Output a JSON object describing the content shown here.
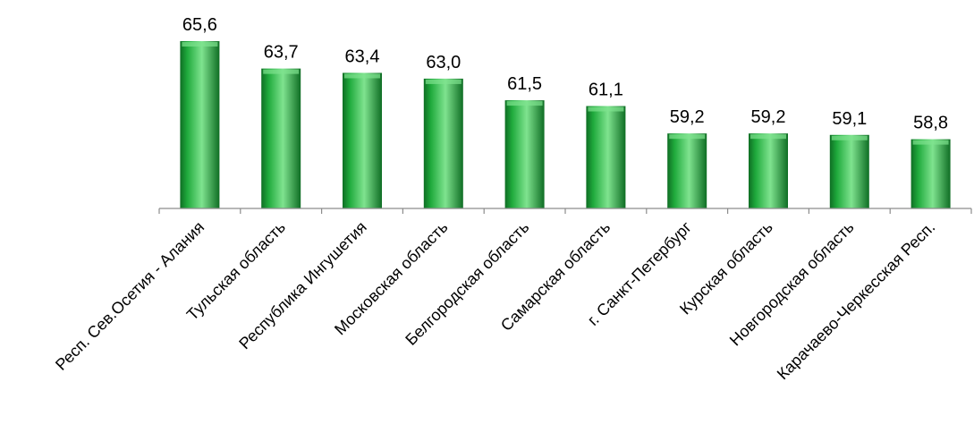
{
  "chart_data": {
    "type": "bar",
    "title": "",
    "xlabel": "",
    "ylabel": "",
    "grid": false,
    "legend": "none",
    "ylim": [
      54,
      66
    ],
    "categories": [
      "Респ. Сев.Осетия - Алания",
      "Тульская область",
      "Республика Ингушетия",
      "Московская область",
      "Белгородская область",
      "Самарская область",
      "г. Санкт-Петербург",
      "Курская область",
      "Новгородская  область",
      "Карачаево-Черкесская Респ."
    ],
    "values": [
      65.6,
      63.7,
      63.4,
      63.0,
      61.5,
      61.1,
      59.2,
      59.2,
      59.1,
      58.8
    ],
    "data_labels": [
      "65,6",
      "63,7",
      "63,4",
      "63,0",
      "61,5",
      "61,1",
      "59,2",
      "59,2",
      "59,1",
      "58,8"
    ],
    "colors": {
      "bar": "#1faa3c",
      "bar_light": "#7fe38f",
      "bar_dark": "#0f6e24",
      "axis": "#8c8c8c"
    }
  }
}
